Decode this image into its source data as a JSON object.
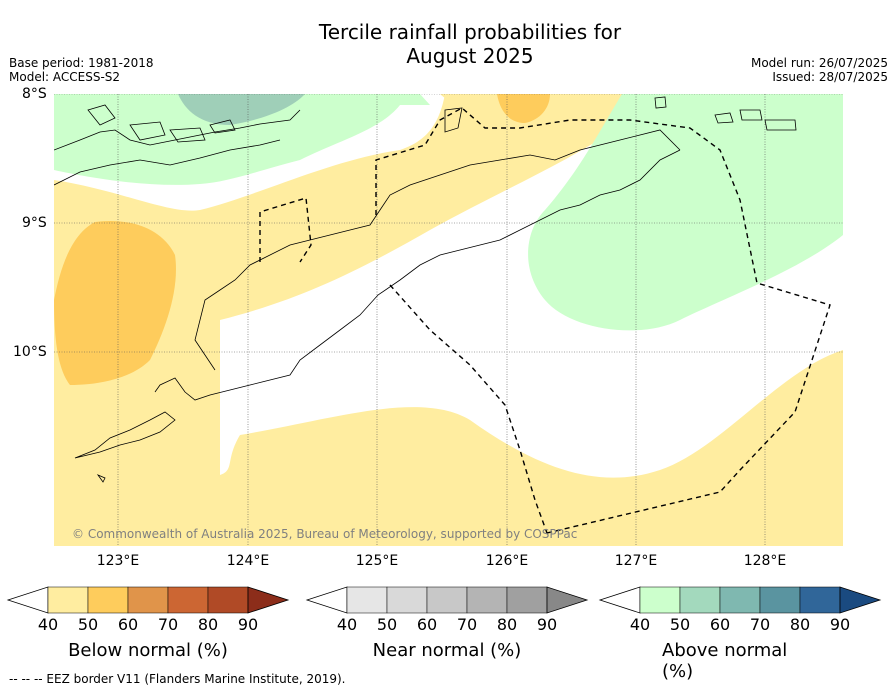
{
  "title_line1": "Tercile rainfall probabilities for",
  "title_line2": "August 2025",
  "meta": {
    "base_period": "Base period: 1981-2018",
    "model": "Model: ACCESS-S2",
    "model_run": "Model run: 26/07/2025",
    "issued": "Issued: 28/07/2025"
  },
  "lat_labels": [
    "8°S",
    "9°S",
    "10°S"
  ],
  "lon_labels": [
    "123°E",
    "124°E",
    "125°E",
    "126°E",
    "127°E",
    "128°E"
  ],
  "copyright": "© Commonwealth of Australia 2025, Bureau of Meteorology, supported by COSPPac",
  "colorbars": {
    "below": {
      "label": "Below normal (%)",
      "ticks": [
        "40",
        "50",
        "60",
        "70",
        "80",
        "90"
      ],
      "colors": [
        "#ffffff",
        "#ffeda0",
        "#fecc5c",
        "#e0944a",
        "#cc6633",
        "#b04a26",
        "#8c2d1a"
      ]
    },
    "near": {
      "label": "Near normal (%)",
      "ticks": [
        "40",
        "50",
        "60",
        "70",
        "80",
        "90"
      ],
      "colors": [
        "#ffffff",
        "#e6e6e6",
        "#d9d9d9",
        "#c8c8c8",
        "#b4b4b4",
        "#a0a0a0",
        "#888888"
      ]
    },
    "above": {
      "label": "Above normal (%)",
      "ticks": [
        "40",
        "50",
        "60",
        "70",
        "80",
        "90"
      ],
      "colors": [
        "#ffffff",
        "#ccffcc",
        "#a3d9bd",
        "#7fb8b0",
        "#5a94a0",
        "#306699",
        "#1a4a80"
      ]
    }
  },
  "legend_footer": "--  --  -- EEZ border V11 (Flanders Marine Institute, 2019)."
}
